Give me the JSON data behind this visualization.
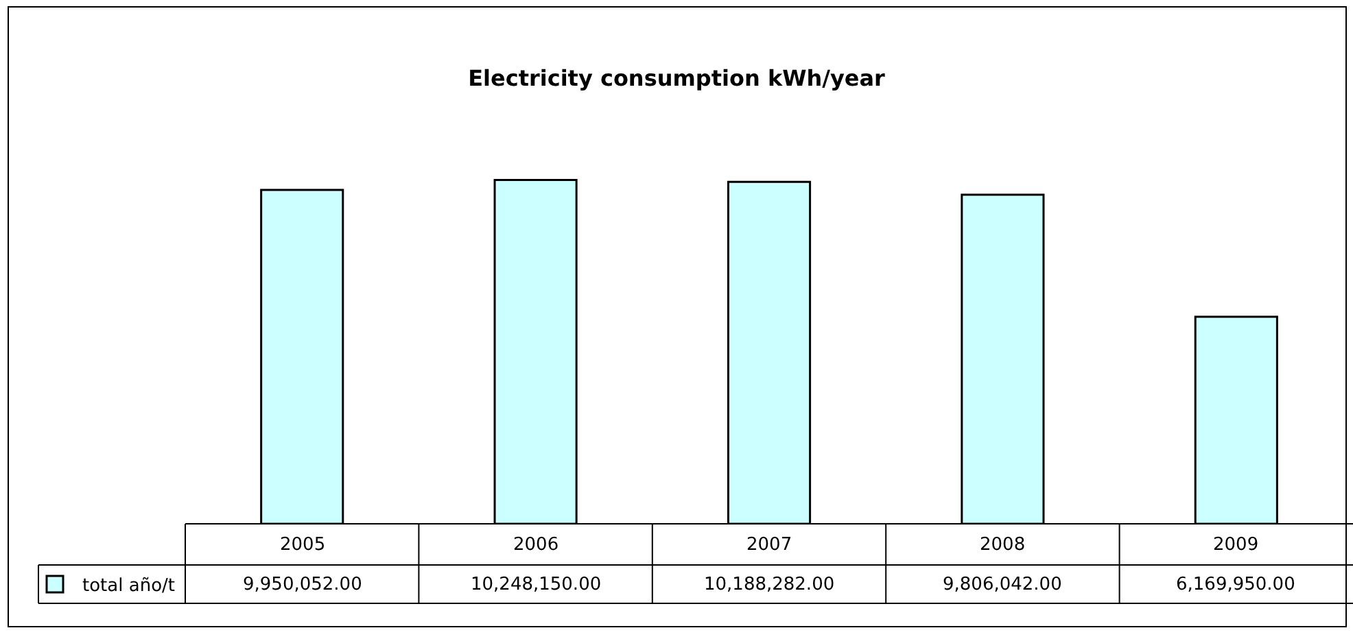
{
  "chart_data": {
    "type": "bar",
    "title": "Electricity consumption kWh/year",
    "categories": [
      "2005",
      "2006",
      "2007",
      "2008",
      "2009"
    ],
    "series": [
      {
        "name": "total año/t",
        "color": "#ccffff",
        "values": [
          9950052,
          10248150,
          10188282,
          9806042,
          6169950
        ],
        "value_labels": [
          "9,950,052.00",
          "10,248,150.00",
          "10,188,282.00",
          "9,806,042.00",
          "6,169,950.00"
        ]
      }
    ],
    "legend": "bottom left"
  }
}
